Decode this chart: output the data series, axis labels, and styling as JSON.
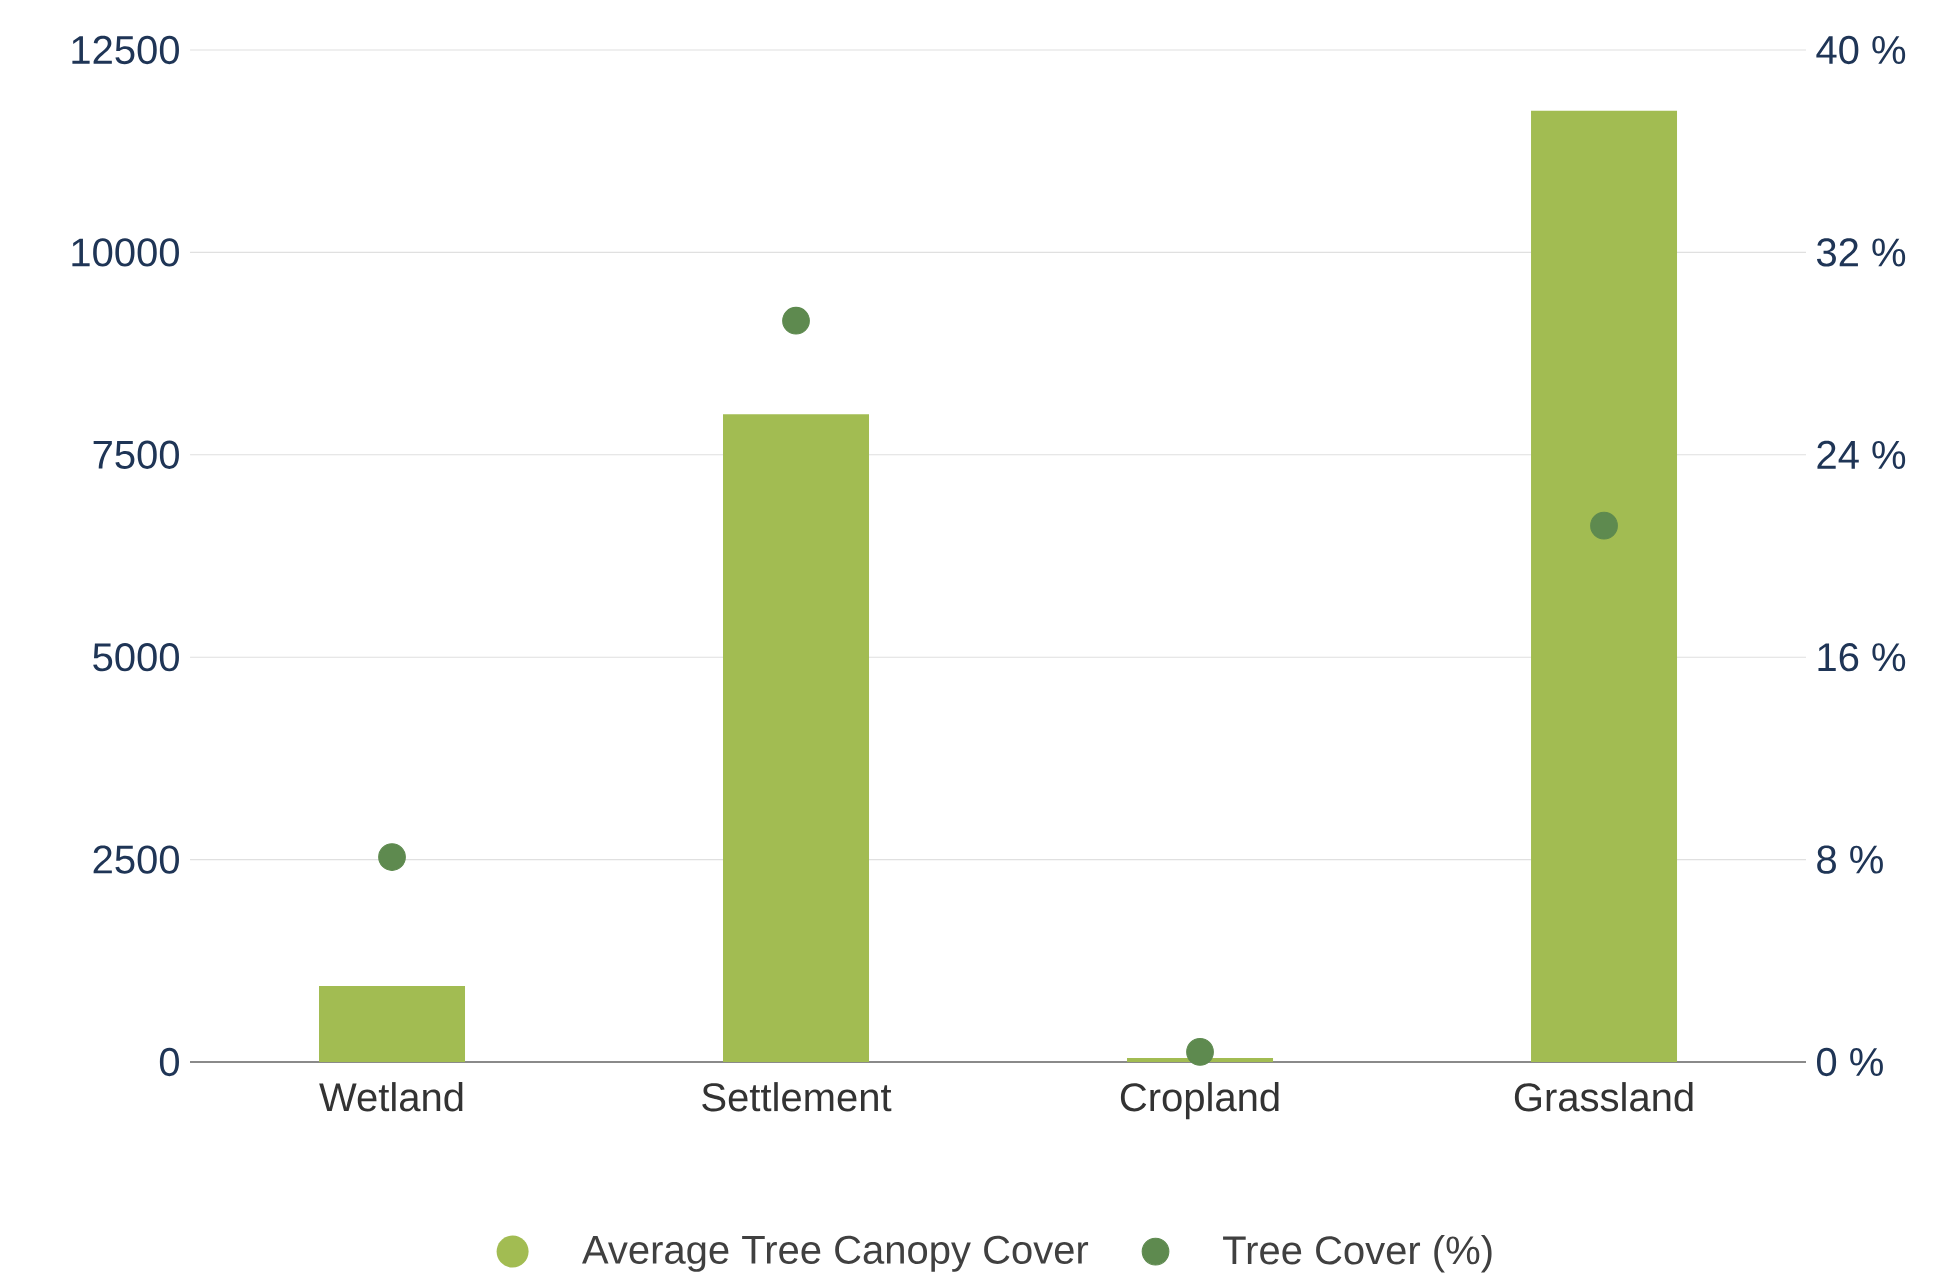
{
  "chart_data": {
    "type": "bar",
    "categories": [
      "Wetland",
      "Settlement",
      "Cropland",
      "Grassland"
    ],
    "series": [
      {
        "name": "Average Tree Canopy Cover",
        "color": "#a2bc52",
        "values": [
          940,
          8000,
          50,
          11750
        ]
      },
      {
        "name": "Tree Cover (%)",
        "color": "#5e8a4f",
        "type": "scatter",
        "axis": "y2",
        "marker": "circle",
        "values": [
          8.1,
          29.3,
          0.4,
          21.2
        ]
      }
    ],
    "ylim": [
      0,
      12500
    ],
    "yticks": [
      0,
      2500,
      5000,
      7500,
      10000,
      12500
    ],
    "y2lim": [
      0,
      40
    ],
    "y2ticks": [
      {
        "value": 0,
        "label": "0 %"
      },
      {
        "value": 8,
        "label": "8 %"
      },
      {
        "value": 16,
        "label": "16 %"
      },
      {
        "value": 24,
        "label": "24 %"
      },
      {
        "value": 32,
        "label": "32 %"
      },
      {
        "value": 40,
        "label": "40 %"
      }
    ],
    "grid": "y",
    "legend": "bottom"
  }
}
